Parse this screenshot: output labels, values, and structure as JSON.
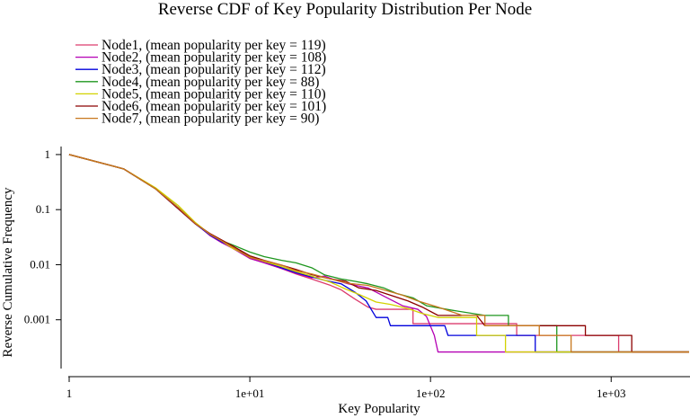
{
  "chart_data": {
    "type": "line",
    "title": "Reverse CDF of Key Popularity Distribution Per Node",
    "xlabel": "Key Popularity",
    "ylabel": "Reverse Cumulative Frequency",
    "xscale": "log",
    "yscale": "log",
    "xlim": [
      1,
      2700
    ],
    "ylim": [
      0.00013,
      1.25
    ],
    "x_ticks": [
      {
        "value": 1,
        "label": "1"
      },
      {
        "value": 10,
        "label": "1e+01"
      },
      {
        "value": 100,
        "label": "1e+02"
      },
      {
        "value": 1000,
        "label": "1e+03"
      }
    ],
    "y_ticks": [
      {
        "value": 1,
        "label": "1"
      },
      {
        "value": 0.1,
        "label": "0.1"
      },
      {
        "value": 0.01,
        "label": "0.01"
      },
      {
        "value": 0.001,
        "label": "0.001"
      }
    ],
    "grid": false,
    "legend_position": "top-left",
    "series": [
      {
        "name": "Node1, (mean popularity per key = 119)",
        "color": "#dc3c6e",
        "points": [
          [
            1,
            1
          ],
          [
            2,
            0.55
          ],
          [
            3,
            0.24
          ],
          [
            4,
            0.105
          ],
          [
            5,
            0.055
          ],
          [
            6,
            0.035
          ],
          [
            7,
            0.026
          ],
          [
            8,
            0.021
          ],
          [
            10,
            0.013
          ],
          [
            12,
            0.011
          ],
          [
            15,
            0.0085
          ],
          [
            18,
            0.0068
          ],
          [
            22,
            0.0055
          ],
          [
            28,
            0.0042
          ],
          [
            32,
            0.0035
          ],
          [
            38,
            0.0024
          ],
          [
            45,
            0.0017
          ],
          [
            50,
            0.00155
          ],
          [
            80,
            0.00155
          ],
          [
            80,
            0.00085
          ],
          [
            160,
            0.00085
          ],
          [
            170,
            0.00085
          ],
          [
            180,
            0.00085
          ],
          [
            180,
            0.00085
          ],
          [
            300,
            0.00085
          ],
          [
            300,
            0.00052
          ],
          [
            1100,
            0.00052
          ],
          [
            1100,
            0.00026
          ],
          [
            2700,
            0.00026
          ]
        ]
      },
      {
        "name": "Node2, (mean popularity per key = 108)",
        "color": "#b400b4",
        "points": [
          [
            1,
            1
          ],
          [
            2,
            0.55
          ],
          [
            3,
            0.245
          ],
          [
            4,
            0.11
          ],
          [
            5,
            0.056
          ],
          [
            6,
            0.034
          ],
          [
            7,
            0.025
          ],
          [
            8,
            0.02
          ],
          [
            10,
            0.013
          ],
          [
            12,
            0.0108
          ],
          [
            15,
            0.0085
          ],
          [
            18,
            0.007
          ],
          [
            22,
            0.0058
          ],
          [
            26,
            0.0062
          ],
          [
            30,
            0.0052
          ],
          [
            35,
            0.0045
          ],
          [
            45,
            0.0038
          ],
          [
            55,
            0.0027
          ],
          [
            70,
            0.0018
          ],
          [
            85,
            0.00155
          ],
          [
            95,
            0.00115
          ],
          [
            105,
            0.00052
          ],
          [
            110,
            0.00026
          ],
          [
            2700,
            0.00026
          ]
        ]
      },
      {
        "name": "Node3, (mean popularity per key = 112)",
        "color": "#0000dc",
        "points": [
          [
            1,
            1
          ],
          [
            2,
            0.55
          ],
          [
            3,
            0.24
          ],
          [
            4,
            0.105
          ],
          [
            5,
            0.055
          ],
          [
            6,
            0.035
          ],
          [
            7,
            0.026
          ],
          [
            8,
            0.021
          ],
          [
            10,
            0.014
          ],
          [
            12,
            0.0115
          ],
          [
            15,
            0.0088
          ],
          [
            18,
            0.0072
          ],
          [
            22,
            0.006
          ],
          [
            26,
            0.0052
          ],
          [
            32,
            0.0045
          ],
          [
            38,
            0.0032
          ],
          [
            44,
            0.0022
          ],
          [
            50,
            0.0011
          ],
          [
            58,
            0.0011
          ],
          [
            60,
            0.00078
          ],
          [
            120,
            0.00078
          ],
          [
            125,
            0.00052
          ],
          [
            380,
            0.00052
          ],
          [
            380,
            0.00026
          ],
          [
            2700,
            0.00026
          ]
        ]
      },
      {
        "name": "Node4, (mean popularity per key = 88)",
        "color": "#1e961e",
        "points": [
          [
            1,
            1
          ],
          [
            2,
            0.55
          ],
          [
            3,
            0.24
          ],
          [
            4,
            0.11
          ],
          [
            5,
            0.057
          ],
          [
            6,
            0.036
          ],
          [
            7,
            0.027
          ],
          [
            8,
            0.023
          ],
          [
            10,
            0.017
          ],
          [
            12,
            0.014
          ],
          [
            15,
            0.012
          ],
          [
            18,
            0.0108
          ],
          [
            22,
            0.0088
          ],
          [
            26,
            0.0065
          ],
          [
            32,
            0.0055
          ],
          [
            38,
            0.005
          ],
          [
            45,
            0.0045
          ],
          [
            55,
            0.0038
          ],
          [
            65,
            0.003
          ],
          [
            80,
            0.0025
          ],
          [
            95,
            0.0018
          ],
          [
            130,
            0.0015
          ],
          [
            200,
            0.0012
          ],
          [
            270,
            0.0012
          ],
          [
            270,
            0.00078
          ],
          [
            500,
            0.00078
          ],
          [
            500,
            0.00026
          ],
          [
            2700,
            0.00026
          ]
        ]
      },
      {
        "name": "Node5, (mean popularity per key = 110)",
        "color": "#d2d200",
        "points": [
          [
            1,
            1
          ],
          [
            2,
            0.55
          ],
          [
            3,
            0.25
          ],
          [
            4,
            0.12
          ],
          [
            5,
            0.058
          ],
          [
            6,
            0.036
          ],
          [
            7,
            0.027
          ],
          [
            8,
            0.02
          ],
          [
            10,
            0.014
          ],
          [
            12,
            0.0115
          ],
          [
            15,
            0.0092
          ],
          [
            18,
            0.0075
          ],
          [
            22,
            0.0062
          ],
          [
            28,
            0.0048
          ],
          [
            34,
            0.0036
          ],
          [
            40,
            0.0029
          ],
          [
            50,
            0.0021
          ],
          [
            60,
            0.0019
          ],
          [
            75,
            0.0016
          ],
          [
            90,
            0.0013
          ],
          [
            110,
            0.0011
          ],
          [
            180,
            0.0011
          ],
          [
            180,
            0.00052
          ],
          [
            260,
            0.00052
          ],
          [
            260,
            0.00026
          ],
          [
            2700,
            0.00026
          ]
        ]
      },
      {
        "name": "Node6, (mean popularity per key = 101)",
        "color": "#8c0000",
        "points": [
          [
            1,
            1
          ],
          [
            2,
            0.55
          ],
          [
            3,
            0.24
          ],
          [
            4,
            0.105
          ],
          [
            5,
            0.055
          ],
          [
            6,
            0.037
          ],
          [
            7,
            0.028
          ],
          [
            8,
            0.022
          ],
          [
            10,
            0.0145
          ],
          [
            12,
            0.012
          ],
          [
            15,
            0.0098
          ],
          [
            18,
            0.0082
          ],
          [
            22,
            0.0066
          ],
          [
            28,
            0.0055
          ],
          [
            34,
            0.005
          ],
          [
            40,
            0.0038
          ],
          [
            50,
            0.0034
          ],
          [
            60,
            0.0028
          ],
          [
            75,
            0.0022
          ],
          [
            90,
            0.0017
          ],
          [
            110,
            0.0012
          ],
          [
            180,
            0.0012
          ],
          [
            200,
            0.00078
          ],
          [
            720,
            0.00078
          ],
          [
            720,
            0.00052
          ],
          [
            1300,
            0.00052
          ],
          [
            1300,
            0.00026
          ],
          [
            2700,
            0.00026
          ]
        ]
      },
      {
        "name": "Node7, (mean popularity per key = 90)",
        "color": "#c8781e",
        "points": [
          [
            1,
            1
          ],
          [
            2,
            0.55
          ],
          [
            3,
            0.24
          ],
          [
            4,
            0.11
          ],
          [
            5,
            0.056
          ],
          [
            6,
            0.036
          ],
          [
            7,
            0.027
          ],
          [
            8,
            0.021
          ],
          [
            10,
            0.0135
          ],
          [
            12,
            0.0118
          ],
          [
            15,
            0.0098
          ],
          [
            18,
            0.0078
          ],
          [
            22,
            0.0068
          ],
          [
            28,
            0.0055
          ],
          [
            35,
            0.0046
          ],
          [
            45,
            0.0042
          ],
          [
            55,
            0.0035
          ],
          [
            70,
            0.0028
          ],
          [
            85,
            0.0022
          ],
          [
            110,
            0.0017
          ],
          [
            150,
            0.0012
          ],
          [
            200,
            0.0012
          ],
          [
            200,
            0.00078
          ],
          [
            400,
            0.00078
          ],
          [
            400,
            0.00052
          ],
          [
            600,
            0.00052
          ],
          [
            600,
            0.00026
          ],
          [
            2700,
            0.00026
          ]
        ]
      }
    ]
  }
}
